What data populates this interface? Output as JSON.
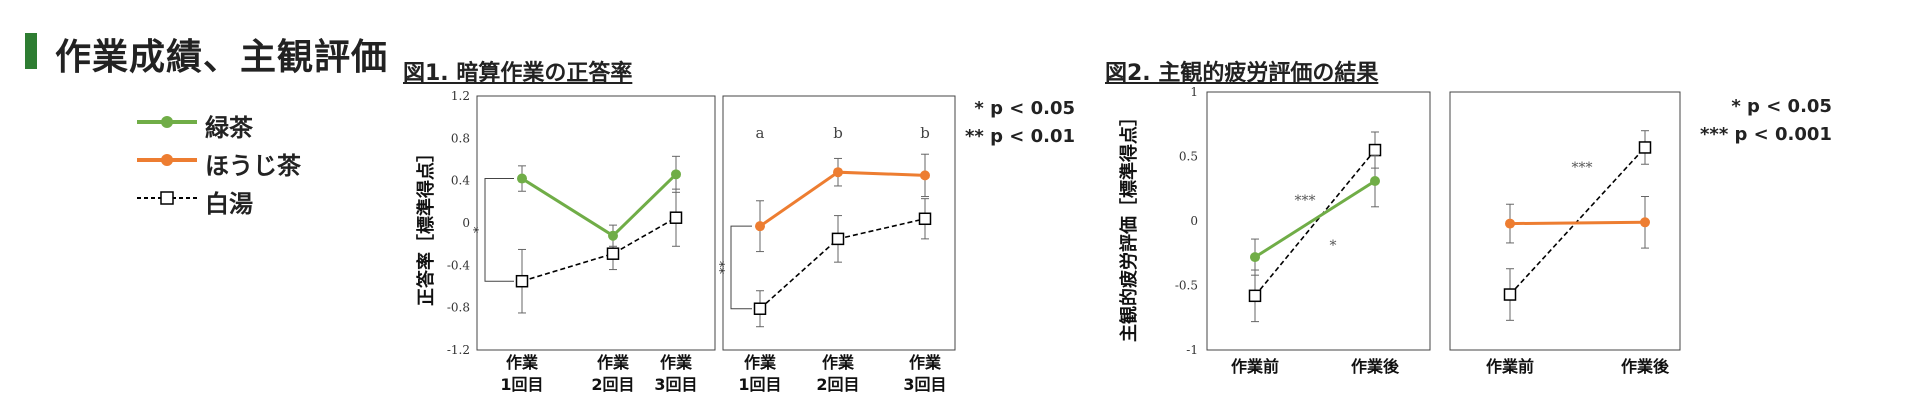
{
  "header": {
    "title": "作業成績、主観評価"
  },
  "legend": [
    {
      "label": "緑茶",
      "color": "#70ad47",
      "marker": "circle",
      "dash": false
    },
    {
      "label": "ほうじ茶",
      "color": "#ed7d31",
      "marker": "circle",
      "dash": false
    },
    {
      "label": "白湯",
      "color": "#000000",
      "marker": "square",
      "dash": true
    }
  ],
  "colors": {
    "green_tea": "#70ad47",
    "houjicha": "#ed7d31",
    "hot_water": "#000000",
    "accent": "#2e7d32"
  },
  "figure1": {
    "title": "図1. 暗算作業の正答率",
    "significance": [
      "* p < 0.05",
      "** p < 0.01"
    ]
  },
  "figure2": {
    "title": "図2. 主観的疲労評価の結果",
    "significance": [
      "* p < 0.05",
      "*** p < 0.001"
    ]
  },
  "chart_data": [
    {
      "type": "line",
      "title": "図1. 暗算作業の正答率",
      "ylabel": "正答率［標準得点］",
      "ylim": [
        -1.2,
        1.2
      ],
      "yticks": [
        -1.2,
        -0.8,
        -0.4,
        0,
        0.4,
        0.8,
        1.2
      ],
      "yticklabels": [
        "-1.2",
        "-0.8",
        "-0.4",
        "0",
        "0.4",
        "0.8",
        "1.2"
      ],
      "categories": [
        [
          "作業",
          "1回目"
        ],
        [
          "作業",
          "2回目"
        ],
        [
          "作業",
          "3回目"
        ]
      ],
      "panels": [
        {
          "series": [
            {
              "name": "緑茶",
              "color": "#70ad47",
              "marker": "circle",
              "dash": false,
              "values": [
                0.42,
                -0.12,
                0.46
              ],
              "errors": [
                0.12,
                0.1,
                0.17
              ]
            },
            {
              "name": "白湯",
              "color": "#000000",
              "marker": "square",
              "dash": true,
              "values": [
                -0.55,
                -0.29,
                0.05
              ],
              "errors": [
                0.3,
                0.15,
                0.27
              ]
            }
          ],
          "annotations": [
            {
              "text": "*",
              "bracket": [
                0.42,
                -0.55
              ]
            }
          ]
        },
        {
          "series": [
            {
              "name": "ほうじ茶",
              "color": "#ed7d31",
              "marker": "circle",
              "dash": false,
              "values": [
                -0.03,
                0.48,
                0.45
              ],
              "errors": [
                0.24,
                0.13,
                0.2
              ]
            },
            {
              "name": "白湯",
              "color": "#000000",
              "marker": "square",
              "dash": true,
              "values": [
                -0.81,
                -0.15,
                0.04
              ],
              "errors": [
                0.17,
                0.22,
                0.19
              ]
            }
          ],
          "letters": [
            "a",
            "b",
            "b"
          ],
          "annotations": [
            {
              "text": "**",
              "bracket": [
                -0.03,
                -0.81
              ]
            }
          ]
        }
      ]
    },
    {
      "type": "line",
      "title": "図2. 主観的疲労評価の結果",
      "ylabel": "主観的疲労評価［標準得点］",
      "ylim": [
        -1,
        1
      ],
      "yticks": [
        -1,
        -0.5,
        0,
        0.5,
        1
      ],
      "yticklabels": [
        "-1",
        "-0.5",
        "0",
        "0.5",
        "1"
      ],
      "categories": [
        "作業前",
        "作業後"
      ],
      "panels": [
        {
          "series": [
            {
              "name": "緑茶",
              "color": "#70ad47",
              "marker": "circle",
              "dash": false,
              "values": [
                -0.28,
                0.31
              ],
              "errors": [
                0.14,
                0.2
              ]
            },
            {
              "name": "白湯",
              "color": "#000000",
              "marker": "square",
              "dash": true,
              "values": [
                -0.58,
                0.55
              ],
              "errors": [
                0.2,
                0.14
              ]
            }
          ],
          "annotations": [
            {
              "text": "***"
            },
            {
              "text": "*"
            }
          ]
        },
        {
          "series": [
            {
              "name": "ほうじ茶",
              "color": "#ed7d31",
              "marker": "circle",
              "dash": false,
              "values": [
                -0.02,
                -0.01
              ],
              "errors": [
                0.15,
                0.2
              ]
            },
            {
              "name": "白湯",
              "color": "#000000",
              "marker": "square",
              "dash": true,
              "values": [
                -0.57,
                0.57
              ],
              "errors": [
                0.2,
                0.13
              ]
            }
          ],
          "annotations": [
            {
              "text": "***"
            }
          ]
        }
      ]
    }
  ]
}
